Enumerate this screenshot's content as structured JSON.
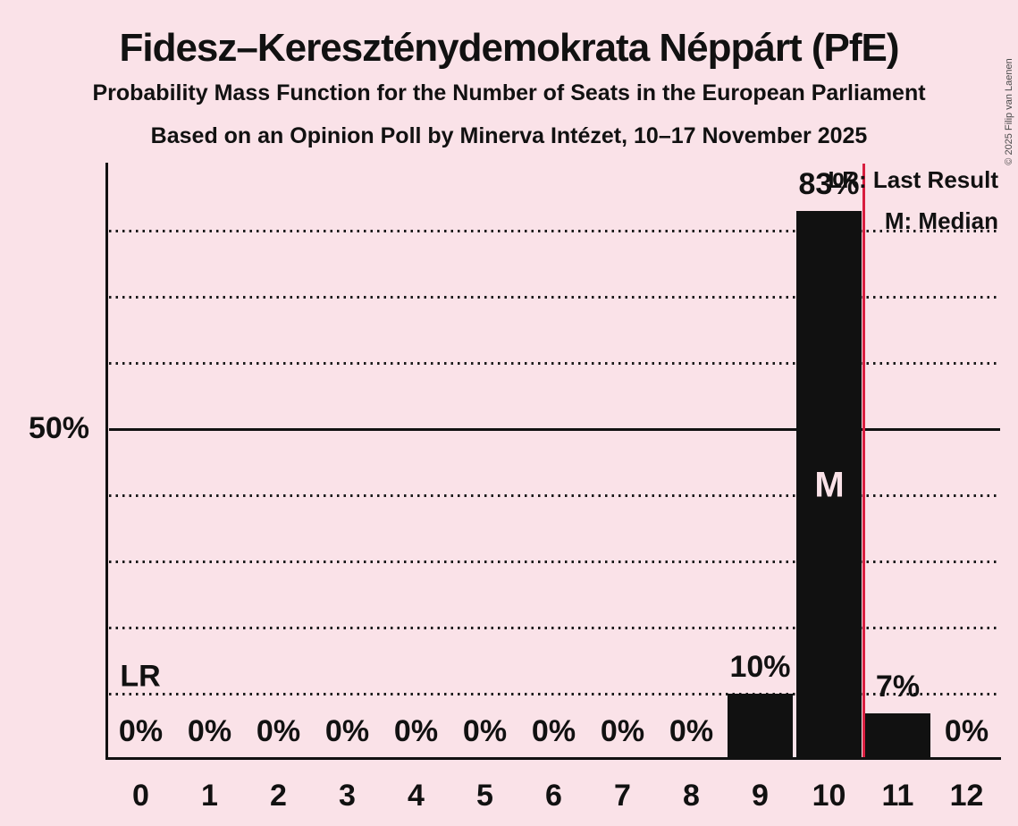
{
  "header": {
    "title": "Fidesz–Kereszténydemokrata Néppárt (PfE)",
    "subtitle1": "Probability Mass Function for the Number of Seats in the European Parliament",
    "subtitle2": "Based on an Opinion Poll by Minerva Intézet, 10–17 November 2025"
  },
  "legend": {
    "lr": "LR: Last Result",
    "m": "M: Median"
  },
  "annotations": {
    "lr_marker": "LR",
    "median_marker": "M",
    "y_axis_label": "50%"
  },
  "copyright": "© 2025 Filip van Laenen",
  "colors": {
    "background": "#FAE2E8",
    "ink": "#111111",
    "bar": "#111111",
    "last_result_line": "#D81E3F",
    "median_text": "#FAE2E8"
  },
  "chart_data": {
    "type": "bar",
    "title": "Probability Mass Function for the Number of Seats in the European Parliament",
    "categories": [
      0,
      1,
      2,
      3,
      4,
      5,
      6,
      7,
      8,
      9,
      10,
      11,
      12
    ],
    "values": [
      0,
      0,
      0,
      0,
      0,
      0,
      0,
      0,
      0,
      10,
      83,
      7,
      0
    ],
    "labels": [
      "0%",
      "0%",
      "0%",
      "0%",
      "0%",
      "0%",
      "0%",
      "0%",
      "0%",
      "10%",
      "83%",
      "7%",
      "0%"
    ],
    "xlabel": "",
    "ylabel": "",
    "ylim": [
      0,
      90
    ],
    "ytick_solid": 50,
    "gridlines_pct": [
      10,
      20,
      30,
      40,
      50,
      60,
      70,
      80
    ],
    "grid_style": "dotted horizontal, solid at 50%",
    "last_result_x": 10.5,
    "median_seat": 10,
    "legend_position": "top-right"
  }
}
